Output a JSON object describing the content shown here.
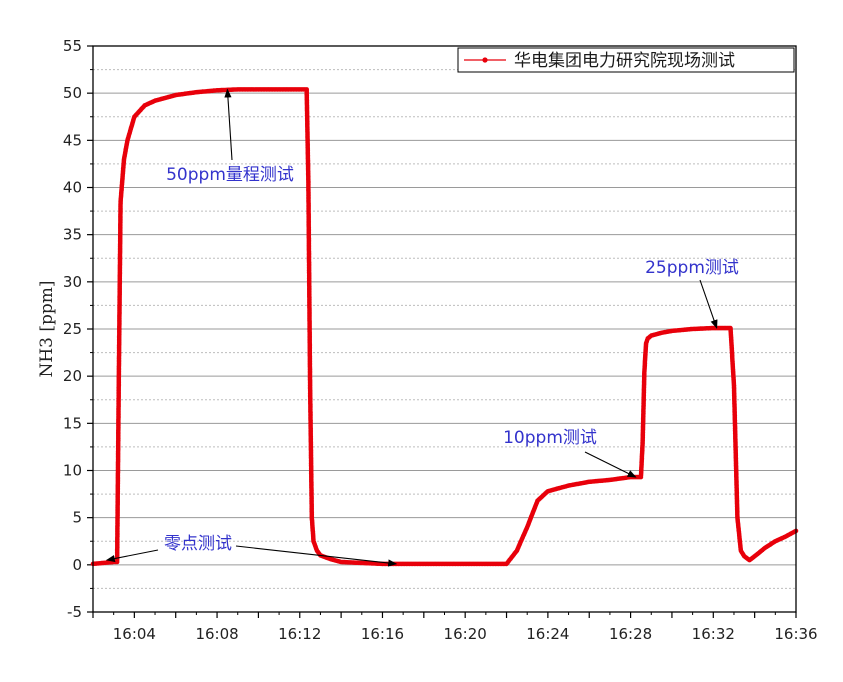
{
  "chart_data": {
    "type": "line",
    "title": "",
    "xlabel": "",
    "ylabel": "NH3 [ppm]",
    "ylim": [
      -5,
      55
    ],
    "yticks": [
      -5,
      0,
      5,
      10,
      15,
      20,
      25,
      30,
      35,
      40,
      45,
      50,
      55
    ],
    "xlim": [
      "16:02",
      "16:36"
    ],
    "xticks": [
      "16:04",
      "16:08",
      "16:12",
      "16:16",
      "16:20",
      "16:24",
      "16:28",
      "16:32",
      "16:36"
    ],
    "grid": true,
    "legend_position": "top-right",
    "series": [
      {
        "name": "华电集团电力研究院现场测试",
        "color": "#e8000b",
        "x": [
          "16:02:00",
          "16:02:30",
          "16:03:00",
          "16:03:10",
          "16:03:15",
          "16:03:20",
          "16:03:30",
          "16:03:40",
          "16:04:00",
          "16:04:30",
          "16:05:00",
          "16:05:30",
          "16:06:00",
          "16:07:00",
          "16:08:00",
          "16:09:00",
          "16:10:00",
          "16:11:00",
          "16:12:00",
          "16:12:20",
          "16:12:25",
          "16:12:30",
          "16:12:35",
          "16:12:40",
          "16:12:50",
          "16:13:00",
          "16:13:30",
          "16:14:00",
          "16:15:00",
          "16:16:00",
          "16:17:00",
          "16:18:00",
          "16:19:00",
          "16:20:00",
          "16:21:00",
          "16:22:00",
          "16:22:30",
          "16:23:00",
          "16:23:30",
          "16:24:00",
          "16:25:00",
          "16:26:00",
          "16:27:00",
          "16:28:00",
          "16:28:30",
          "16:28:35",
          "16:28:40",
          "16:28:45",
          "16:28:50",
          "16:29:00",
          "16:29:30",
          "16:30:00",
          "16:31:00",
          "16:32:00",
          "16:32:50",
          "16:33:00",
          "16:33:10",
          "16:33:20",
          "16:33:30",
          "16:33:45",
          "16:34:00",
          "16:34:30",
          "16:35:00",
          "16:35:30",
          "16:36:00"
        ],
        "values": [
          0.1,
          0.2,
          0.3,
          0.3,
          20.0,
          38.5,
          43.0,
          45.0,
          47.5,
          48.7,
          49.2,
          49.5,
          49.8,
          50.1,
          50.3,
          50.4,
          50.4,
          50.4,
          50.4,
          50.4,
          40.5,
          19.0,
          5.0,
          2.5,
          1.5,
          1.0,
          0.6,
          0.3,
          0.2,
          0.1,
          0.1,
          0.1,
          0.1,
          0.1,
          0.1,
          0.1,
          1.5,
          4.0,
          6.8,
          7.8,
          8.4,
          8.8,
          9.0,
          9.3,
          9.3,
          13.0,
          20.5,
          23.5,
          24.0,
          24.3,
          24.6,
          24.8,
          25.0,
          25.1,
          25.1,
          19.0,
          5.0,
          1.5,
          0.9,
          0.5,
          0.9,
          1.8,
          2.5,
          3.0,
          3.6
        ]
      }
    ],
    "annotations": [
      {
        "text": "50ppm量程测试",
        "target": {
          "x": "16:08:30",
          "y": 50.4
        }
      },
      {
        "text": "25ppm测试",
        "target": {
          "x": "16:32:10",
          "y": 25.1
        }
      },
      {
        "text": "10ppm测试",
        "target": {
          "x": "16:28:15",
          "y": 9.3
        }
      },
      {
        "text": "零点测试",
        "target": {
          "x": "16:02:40",
          "y": 0.5
        }
      },
      {
        "text": "零点测试",
        "target": {
          "x": "16:16:40",
          "y": 0.1
        }
      }
    ]
  }
}
